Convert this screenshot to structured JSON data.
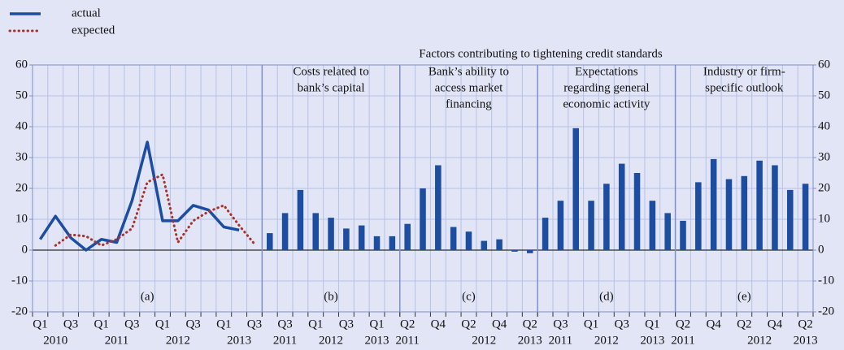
{
  "title": "Factors contributing to tightening credit standards",
  "chart_data": [
    {
      "type": "line",
      "label": "(a)",
      "categories": [
        "Q1",
        null,
        "Q3",
        null,
        "Q1",
        null,
        "Q3",
        null,
        "Q1",
        null,
        "Q3",
        null,
        "Q1",
        null,
        "Q3"
      ],
      "years": [
        null,
        "2010",
        null,
        null,
        null,
        "2011",
        null,
        null,
        null,
        "2012",
        null,
        null,
        null,
        "2013",
        null
      ],
      "series": [
        {
          "name": "actual",
          "color": "#1c4da1",
          "style": "solid",
          "values": [
            3.5,
            11,
            4,
            0,
            3.5,
            2.5,
            16,
            35,
            9.5,
            9.5,
            14.5,
            13,
            7.5,
            6.5,
            null
          ]
        },
        {
          "name": "expected",
          "color": "#a8322b",
          "style": "dotted",
          "values": [
            null,
            1.5,
            5,
            4.5,
            1.5,
            3.5,
            7,
            22,
            24.5,
            2.5,
            9.5,
            12.5,
            14.5,
            8,
            2
          ]
        }
      ],
      "ylim": [
        -20,
        60
      ],
      "yticks": [
        -20,
        -10,
        0,
        10,
        20,
        30,
        40,
        50,
        60
      ],
      "grid": true
    },
    {
      "type": "bar",
      "label": "(b)",
      "title_lines": [
        "Costs related to",
        "bank’s capital"
      ],
      "color": "#1c4da1",
      "categories": [
        null,
        "Q3",
        null,
        "Q1",
        null,
        "Q3",
        null,
        "Q1",
        null
      ],
      "years": [
        null,
        "2011",
        null,
        null,
        "2012",
        null,
        null,
        "2013",
        null
      ],
      "values": [
        5.5,
        12,
        19.5,
        12,
        10.5,
        7,
        8,
        4.5,
        4.5
      ],
      "ylim": [
        -20,
        60
      ],
      "yticks": [
        -20,
        -10,
        0,
        10,
        20,
        30,
        40,
        50,
        60
      ],
      "grid": true
    },
    {
      "type": "bar",
      "label": "(c)",
      "title_lines": [
        "Bank’s ability to",
        "access market",
        "financing"
      ],
      "color": "#1c4da1",
      "categories": [
        "Q2",
        null,
        "Q4",
        null,
        "Q2",
        null,
        "Q4",
        null,
        "Q2"
      ],
      "years": [
        "2011",
        null,
        null,
        null,
        null,
        "2012",
        null,
        null,
        "2013"
      ],
      "values": [
        8.5,
        20,
        27.5,
        7.5,
        6,
        3,
        3.5,
        -0.5,
        -1
      ],
      "ylim": [
        -20,
        60
      ],
      "yticks": [
        -20,
        -10,
        0,
        10,
        20,
        30,
        40,
        50,
        60
      ],
      "grid": true
    },
    {
      "type": "bar",
      "label": "(d)",
      "title_lines": [
        "Expectations",
        "regarding general",
        "economic activity"
      ],
      "color": "#1c4da1",
      "categories": [
        null,
        "Q3",
        null,
        "Q1",
        null,
        "Q3",
        null,
        "Q1",
        null
      ],
      "years": [
        null,
        "2011",
        null,
        null,
        "2012",
        null,
        null,
        "2013",
        null
      ],
      "values": [
        10.5,
        16,
        39.5,
        16,
        21.5,
        28,
        25,
        16,
        12
      ],
      "ylim": [
        -20,
        60
      ],
      "yticks": [
        -20,
        -10,
        0,
        10,
        20,
        30,
        40,
        50,
        60
      ],
      "grid": true
    },
    {
      "type": "bar",
      "label": "(e)",
      "title_lines": [
        "Industry or firm-",
        "specific outlook"
      ],
      "color": "#1c4da1",
      "categories": [
        "Q2",
        null,
        "Q4",
        null,
        "Q2",
        null,
        "Q4",
        null,
        "Q2"
      ],
      "years": [
        "2011",
        null,
        null,
        null,
        null,
        "2012",
        null,
        null,
        "2013"
      ],
      "values": [
        9.5,
        22,
        29.5,
        23,
        24,
        29,
        27.5,
        19.5,
        21.5
      ],
      "ylim": [
        -20,
        60
      ],
      "yticks": [
        -20,
        -10,
        0,
        10,
        20,
        30,
        40,
        50,
        60
      ],
      "grid": true
    }
  ]
}
